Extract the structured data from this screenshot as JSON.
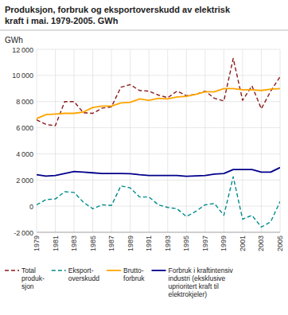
{
  "chart_data": {
    "type": "line",
    "title": "Produksjon, forbruk og eksportoverskudd av elektrisk\nkraft i mai. 1979-2005. GWh",
    "ylabel": "GWh",
    "x": [
      1979,
      1980,
      1981,
      1982,
      1983,
      1984,
      1985,
      1986,
      1987,
      1988,
      1989,
      1990,
      1991,
      1992,
      1993,
      1994,
      1995,
      1996,
      1997,
      1998,
      1999,
      2000,
      2001,
      2002,
      2003,
      2004,
      2005
    ],
    "series": [
      {
        "name": "Total\nproduk-\nsjon",
        "color": "#8B1A1A",
        "line_style": "dashed",
        "values": [
          6600,
          6250,
          6150,
          8000,
          8000,
          7150,
          7100,
          7500,
          7600,
          9100,
          9300,
          8850,
          8800,
          8500,
          8300,
          8800,
          8450,
          8550,
          8800,
          8250,
          8050,
          11300,
          8100,
          9200,
          7450,
          8800,
          9900
        ]
      },
      {
        "name": "Eksport-\noverskudd",
        "color": "#008B8B",
        "line_style": "dashed",
        "values": [
          100,
          500,
          550,
          1100,
          1050,
          300,
          -200,
          100,
          50,
          1550,
          1400,
          700,
          700,
          100,
          -100,
          -200,
          -800,
          -400,
          100,
          200,
          -700,
          2250,
          -1000,
          -700,
          -1600,
          -1200,
          350
        ]
      },
      {
        "name": "Brutto-\nforbruk",
        "color": "#FFA500",
        "line_style": "solid",
        "values": [
          6700,
          7000,
          7050,
          7100,
          7100,
          7200,
          7550,
          7650,
          7650,
          7900,
          7950,
          8200,
          8100,
          8250,
          8200,
          8350,
          8400,
          8550,
          8750,
          8750,
          9000,
          9000,
          8900,
          8900,
          8850,
          8950,
          9000
        ]
      },
      {
        "name": "Forbruk i kraftintensiv\nindustri (eksklusive\nuprioritert kraft til\nelektrokjeler)",
        "color": "#00008B",
        "line_style": "solid",
        "values": [
          2400,
          2300,
          2350,
          2500,
          2650,
          2600,
          2550,
          2500,
          2500,
          2500,
          2480,
          2400,
          2350,
          2350,
          2350,
          2350,
          2280,
          2320,
          2350,
          2450,
          2500,
          2800,
          2800,
          2800,
          2600,
          2600,
          2950
        ]
      }
    ],
    "xlim": [
      1979,
      2005
    ],
    "xticks": [
      1979,
      1981,
      1983,
      1985,
      1987,
      1989,
      1991,
      1993,
      1995,
      1997,
      1999,
      2001,
      2003,
      2005
    ],
    "ylim": [
      -2000,
      12000
    ],
    "yticks": [
      {
        "value": -2000,
        "label": "-2 000"
      },
      0,
      {
        "value": 2000,
        "label": "2 000"
      },
      {
        "value": 4000,
        "label": "4 000"
      },
      {
        "value": 6000,
        "label": "6 000"
      },
      {
        "value": 8000,
        "label": "8 000"
      },
      {
        "value": 10000,
        "label": "10 000"
      },
      {
        "value": 12000,
        "label": "12 000"
      }
    ],
    "grid": true,
    "legend": "bottom"
  }
}
